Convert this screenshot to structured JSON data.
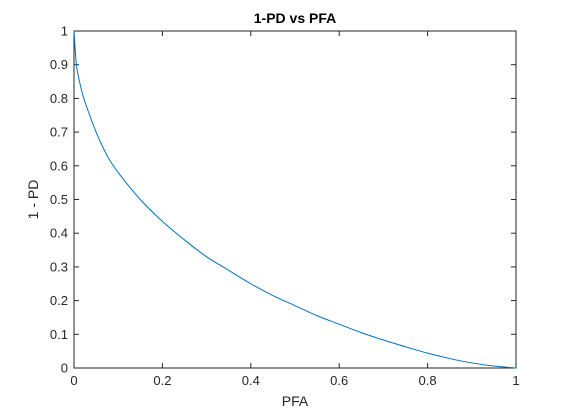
{
  "chart_data": {
    "type": "line",
    "title": "1-PD vs PFA",
    "xlabel": "PFA",
    "ylabel": "1 - PD",
    "xlim": [
      0,
      1
    ],
    "ylim": [
      0,
      1
    ],
    "xticks": [
      0,
      0.2,
      0.4,
      0.6,
      0.8,
      1
    ],
    "xtick_labels": [
      "0",
      "0.2",
      "0.4",
      "0.6",
      "0.8",
      "1"
    ],
    "yticks": [
      0,
      0.1,
      0.2,
      0.3,
      0.4,
      0.5,
      0.6,
      0.7,
      0.8,
      0.9,
      1
    ],
    "ytick_labels": [
      "0",
      "0.1",
      "0.2",
      "0.3",
      "0.4",
      "0.5",
      "0.6",
      "0.7",
      "0.8",
      "0.9",
      "1"
    ],
    "grid": false,
    "line_color": "#0072bd",
    "series": [
      {
        "x": [
          0,
          0.005,
          0.01,
          0.02,
          0.03,
          0.05,
          0.075,
          0.1,
          0.15,
          0.2,
          0.25,
          0.3,
          0.35,
          0.4,
          0.45,
          0.5,
          0.55,
          0.6,
          0.65,
          0.7,
          0.75,
          0.8,
          0.85,
          0.9,
          0.95,
          1.0
        ],
        "y": [
          1.0,
          0.905,
          0.865,
          0.81,
          0.77,
          0.7,
          0.63,
          0.58,
          0.5,
          0.435,
          0.38,
          0.33,
          0.29,
          0.25,
          0.215,
          0.185,
          0.155,
          0.13,
          0.105,
          0.083,
          0.063,
          0.044,
          0.028,
          0.015,
          0.006,
          0.0
        ]
      }
    ]
  }
}
